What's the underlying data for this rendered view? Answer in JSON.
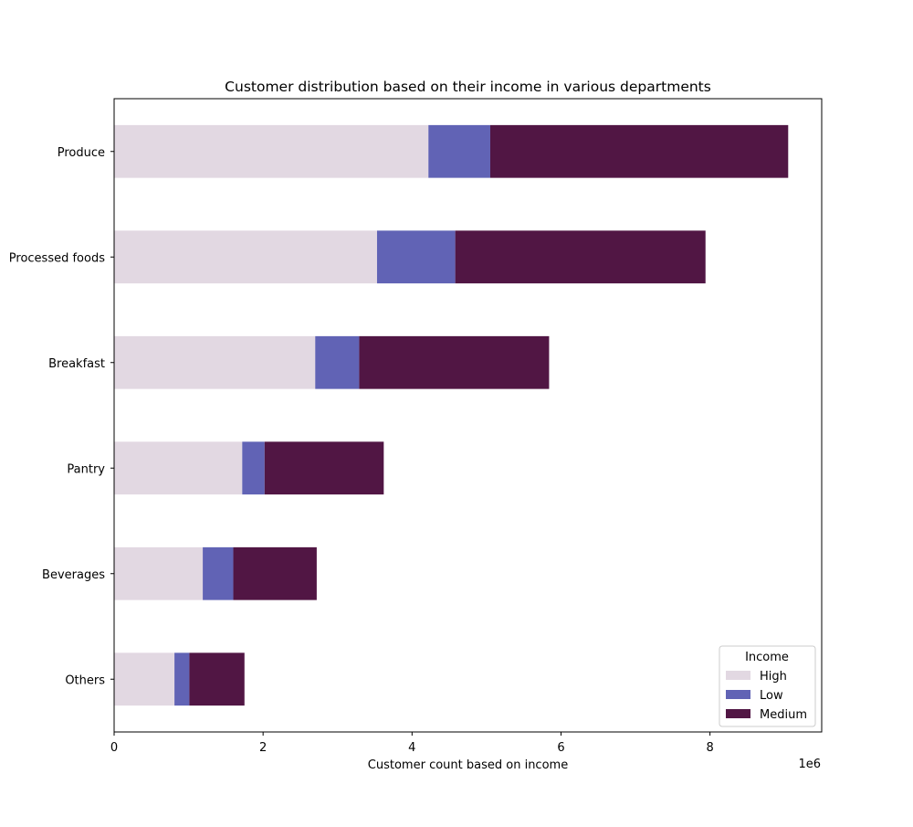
{
  "chart_data": {
    "type": "bar",
    "orientation": "horizontal",
    "stacked": true,
    "title": "Customer distribution based on their income in various departments",
    "xlabel": "Customer count based on income",
    "ylabel": "",
    "x_offset_label": "1e6",
    "xlim": [
      0,
      9500000
    ],
    "xticks": [
      0,
      2000000,
      4000000,
      6000000,
      8000000
    ],
    "xtick_labels": [
      "0",
      "2",
      "4",
      "6",
      "8"
    ],
    "grid": false,
    "categories": [
      "Produce",
      "Processed foods",
      "Breakfast",
      "Pantry",
      "Beverages",
      "Others"
    ],
    "series": [
      {
        "name": "High",
        "color": "#e2d8e2",
        "values": [
          4220000,
          3530000,
          2700000,
          1720000,
          1190000,
          810000
        ]
      },
      {
        "name": "Low",
        "color": "#6163b5",
        "values": [
          830000,
          1050000,
          590000,
          300000,
          410000,
          200000
        ]
      },
      {
        "name": "Medium",
        "color": "#511644",
        "values": [
          4000000,
          3360000,
          2550000,
          1600000,
          1120000,
          740000
        ]
      }
    ],
    "legend": {
      "title": "Income",
      "placement": "lower right"
    }
  }
}
